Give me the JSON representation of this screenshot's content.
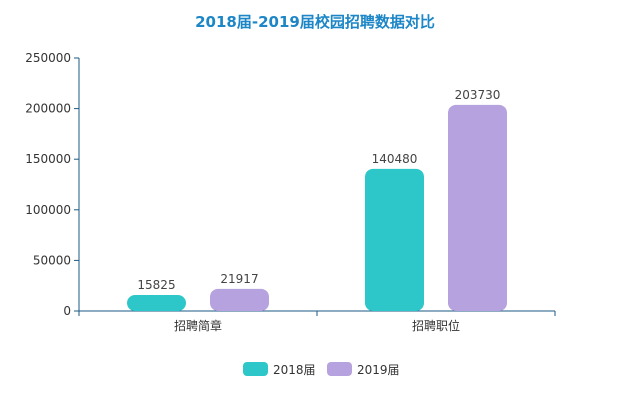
{
  "chart_data": {
    "type": "bar",
    "title": "2018届-2019届校园招聘数据对比",
    "categories": [
      "招聘简章",
      "招聘职位"
    ],
    "series": [
      {
        "name": "2018届",
        "values": [
          15825,
          140480
        ],
        "color": "#2ec7c9"
      },
      {
        "name": "2019届",
        "values": [
          21917,
          203730
        ],
        "color": "#b6a2de"
      }
    ],
    "ylim": [
      0,
      250000
    ],
    "yticks": [
      0,
      50000,
      100000,
      150000,
      200000,
      250000
    ],
    "grid": false,
    "legend_position": "bottom-center",
    "title_color": "#1c86c6",
    "axis_color": "#1b5a84"
  }
}
